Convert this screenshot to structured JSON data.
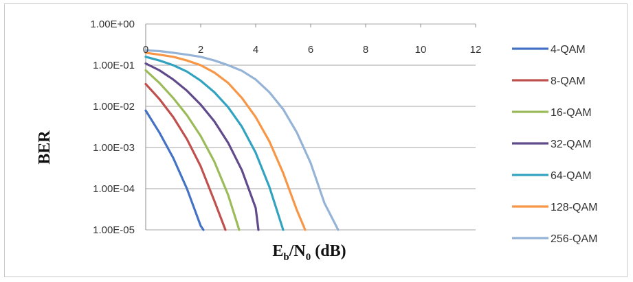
{
  "chart_data": {
    "type": "line",
    "ylabel": "BER",
    "xlabel_main": "E",
    "xlabel_sub1": "b",
    "xlabel_mid": "/N",
    "xlabel_sub2": "0",
    "xlabel_tail": " (dB)",
    "xlim": [
      0,
      12
    ],
    "x_ticks": [
      "0",
      "2",
      "4",
      "6",
      "8",
      "10",
      "12"
    ],
    "y_scale": "log",
    "ylim": [
      1e-05,
      1
    ],
    "y_ticks": [
      "1.00E+00",
      "1.00E-01",
      "1.00E-02",
      "1.00E-03",
      "1.00E-04",
      "1.00E-05"
    ],
    "grid": "horizontal",
    "legend_position": "right",
    "series": [
      {
        "name": "4-QAM",
        "color": "#4472C4",
        "x": [
          0,
          0.5,
          1,
          1.5,
          2,
          2.1
        ],
        "y": [
          0.0079,
          0.0023,
          0.00056,
          0.0001,
          1.25e-05,
          1e-05
        ]
      },
      {
        "name": "8-QAM",
        "color": "#C0504D",
        "x": [
          0,
          0.5,
          1,
          1.5,
          2,
          2.5,
          2.9
        ],
        "y": [
          0.035,
          0.015,
          0.0055,
          0.0016,
          0.00035,
          5e-05,
          1e-05
        ]
      },
      {
        "name": "16-QAM",
        "color": "#9BBB59",
        "x": [
          0,
          0.5,
          1,
          1.5,
          2,
          2.5,
          3,
          3.4
        ],
        "y": [
          0.075,
          0.037,
          0.016,
          0.0061,
          0.0019,
          0.00045,
          7e-05,
          1e-05
        ]
      },
      {
        "name": "32-QAM",
        "color": "#604A8B",
        "x": [
          0,
          0.5,
          1,
          1.5,
          2,
          2.5,
          3,
          3.5,
          4,
          4.1
        ],
        "y": [
          0.11,
          0.075,
          0.045,
          0.024,
          0.011,
          0.0043,
          0.0013,
          0.00028,
          3.4e-05,
          1e-05
        ]
      },
      {
        "name": "64-QAM",
        "color": "#31A3C0",
        "x": [
          0,
          0.5,
          1,
          1.5,
          2,
          2.5,
          3,
          3.5,
          4,
          4.5,
          5
        ],
        "y": [
          0.16,
          0.13,
          0.1,
          0.07,
          0.042,
          0.022,
          0.0095,
          0.0032,
          0.00075,
          0.00011,
          1e-05
        ]
      },
      {
        "name": "128-QAM",
        "color": "#F79646",
        "x": [
          0,
          0.5,
          1,
          1.5,
          2,
          2.5,
          3,
          3.5,
          4,
          4.5,
          5,
          5.5,
          5.8
        ],
        "y": [
          0.2,
          0.18,
          0.16,
          0.13,
          0.1,
          0.066,
          0.037,
          0.016,
          0.0055,
          0.0014,
          0.00024,
          3e-05,
          1e-05
        ]
      },
      {
        "name": "256-QAM",
        "color": "#95B3D7",
        "x": [
          0,
          0.5,
          1,
          1.5,
          2,
          2.5,
          3,
          3.5,
          4,
          4.5,
          5,
          5.5,
          6,
          6.5,
          7
        ],
        "y": [
          0.23,
          0.22,
          0.2,
          0.18,
          0.16,
          0.13,
          0.1,
          0.073,
          0.045,
          0.022,
          0.0085,
          0.0023,
          0.00042,
          4.5e-05,
          1e-05
        ]
      }
    ]
  }
}
